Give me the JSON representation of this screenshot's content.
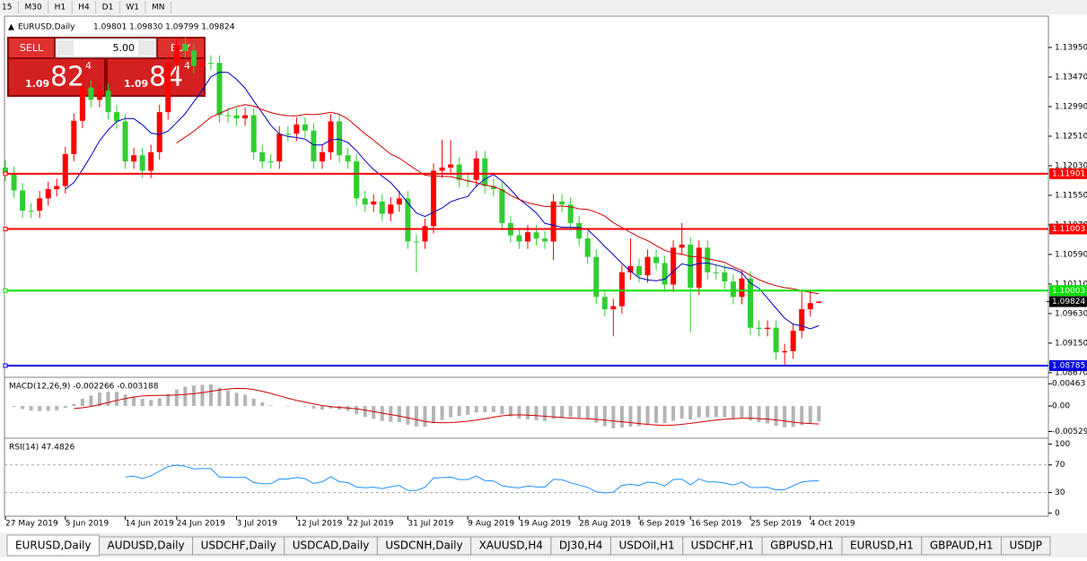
{
  "toolbar": {
    "timeframes": [
      "15",
      "M30",
      "H1",
      "H4",
      "D1",
      "W1",
      "MN"
    ]
  },
  "header": {
    "symbol": "EURUSD,Daily",
    "ohlc": "1.09801 1.09830 1.09799 1.09824"
  },
  "trade_panel": {
    "sell": "SELL",
    "buy": "BUY",
    "lot": "5.00",
    "sell_price": {
      "big": "1.09",
      "pips": "82",
      "point": "4"
    },
    "buy_price": {
      "big": "1.09",
      "pips": "84",
      "point": "4"
    }
  },
  "chart": {
    "ylim": [
      1.0861,
      1.1443
    ],
    "yticks": [
      {
        "value": 1.1395,
        "label": "1.13950"
      },
      {
        "value": 1.1347,
        "label": "1.13470"
      },
      {
        "value": 1.1299,
        "label": "1.12990"
      },
      {
        "value": 1.1251,
        "label": "1.12510"
      },
      {
        "value": 1.1203,
        "label": "1.12030"
      },
      {
        "value": 1.1155,
        "label": "1.11550"
      },
      {
        "value": 1.1107,
        "label": "1.11070"
      },
      {
        "value": 1.1059,
        "label": "1.10590"
      },
      {
        "value": 1.1011,
        "label": "1.10110"
      },
      {
        "value": 1.0963,
        "label": "1.09630"
      },
      {
        "value": 1.0915,
        "label": "1.09150"
      },
      {
        "value": 1.0867,
        "label": "1.08670"
      }
    ],
    "bull_color": "#ff0000",
    "bear_color": "#32cd32",
    "fast_ma_color": "#0000c0",
    "slow_ma_color": "#d00000",
    "levels": [
      {
        "value": 1.11901,
        "label": "1.11901",
        "color": "#ff0000"
      },
      {
        "value": 1.11003,
        "label": "1.11003",
        "color": "#ff0000"
      },
      {
        "value": 1.10003,
        "label": "1.10003",
        "color": "#00e000"
      },
      {
        "value": 1.08785,
        "label": "1.08785",
        "color": "#0000e0"
      }
    ],
    "current": {
      "value": 1.09824,
      "label": "1.09824"
    },
    "candles": [
      [
        1.12,
        1.1212,
        1.1178,
        1.119
      ],
      [
        1.119,
        1.1202,
        1.1151,
        1.1163
      ],
      [
        1.1163,
        1.1175,
        1.1118,
        1.113
      ],
      [
        1.113,
        1.1142,
        1.1118,
        1.113
      ],
      [
        1.113,
        1.1162,
        1.1118,
        1.115
      ],
      [
        1.115,
        1.1177,
        1.1138,
        1.1165
      ],
      [
        1.1165,
        1.1182,
        1.1153,
        1.117
      ],
      [
        1.117,
        1.1234,
        1.1158,
        1.1222
      ],
      [
        1.1222,
        1.1288,
        1.121,
        1.1276
      ],
      [
        1.1276,
        1.1348,
        1.1264,
        1.133
      ],
      [
        1.133,
        1.1342,
        1.1298,
        1.131
      ],
      [
        1.131,
        1.1337,
        1.1298,
        1.1325
      ],
      [
        1.1325,
        1.1337,
        1.1278,
        1.129
      ],
      [
        1.129,
        1.1302,
        1.1263,
        1.1275
      ],
      [
        1.1275,
        1.1287,
        1.1198,
        1.121
      ],
      [
        1.121,
        1.1232,
        1.1198,
        1.122
      ],
      [
        1.122,
        1.1232,
        1.1183,
        1.1195
      ],
      [
        1.1195,
        1.1237,
        1.1183,
        1.1225
      ],
      [
        1.1225,
        1.1302,
        1.1213,
        1.129
      ],
      [
        1.129,
        1.1382,
        1.1278,
        1.137
      ],
      [
        1.137,
        1.1412,
        1.1358,
        1.14
      ],
      [
        1.14,
        1.1412,
        1.1378,
        1.139
      ],
      [
        1.139,
        1.1402,
        1.1353,
        1.1365
      ],
      [
        1.1365,
        1.1382,
        1.1353,
        1.137
      ],
      [
        1.137,
        1.1382,
        1.1358,
        1.137
      ],
      [
        1.137,
        1.1382,
        1.1273,
        1.1285
      ],
      [
        1.1285,
        1.1297,
        1.1273,
        1.1285
      ],
      [
        1.1285,
        1.1297,
        1.1268,
        1.128
      ],
      [
        1.128,
        1.1297,
        1.1268,
        1.1285
      ],
      [
        1.1285,
        1.1297,
        1.1213,
        1.1225
      ],
      [
        1.1225,
        1.1237,
        1.1198,
        1.121
      ],
      [
        1.121,
        1.1222,
        1.1198,
        1.121
      ],
      [
        1.121,
        1.1267,
        1.1198,
        1.1255
      ],
      [
        1.1255,
        1.1267,
        1.1243,
        1.1255
      ],
      [
        1.1255,
        1.1282,
        1.1243,
        1.127
      ],
      [
        1.127,
        1.1282,
        1.1248,
        1.126
      ],
      [
        1.126,
        1.1272,
        1.1198,
        1.121
      ],
      [
        1.121,
        1.1237,
        1.1198,
        1.1225
      ],
      [
        1.1225,
        1.1287,
        1.1213,
        1.1275
      ],
      [
        1.1275,
        1.1287,
        1.1208,
        1.122
      ],
      [
        1.122,
        1.1232,
        1.1198,
        1.121
      ],
      [
        1.121,
        1.1222,
        1.1138,
        1.115
      ],
      [
        1.115,
        1.1162,
        1.1128,
        1.114
      ],
      [
        1.114,
        1.1157,
        1.1128,
        1.1145
      ],
      [
        1.1145,
        1.1157,
        1.1113,
        1.1125
      ],
      [
        1.1125,
        1.1152,
        1.1113,
        1.114
      ],
      [
        1.114,
        1.1162,
        1.1128,
        1.115
      ],
      [
        1.115,
        1.1162,
        1.1068,
        1.108
      ],
      [
        1.108,
        1.1092,
        1.103,
        1.108
      ],
      [
        1.108,
        1.1117,
        1.1068,
        1.1105
      ],
      [
        1.1105,
        1.1207,
        1.1093,
        1.1195
      ],
      [
        1.1195,
        1.1245,
        1.1183,
        1.12
      ],
      [
        1.12,
        1.1245,
        1.1188,
        1.1205
      ],
      [
        1.1205,
        1.1217,
        1.1168,
        1.118
      ],
      [
        1.118,
        1.1192,
        1.1168,
        1.118
      ],
      [
        1.118,
        1.1227,
        1.1168,
        1.1215
      ],
      [
        1.1215,
        1.1227,
        1.1158,
        1.117
      ],
      [
        1.117,
        1.1182,
        1.1153,
        1.1165
      ],
      [
        1.1165,
        1.1177,
        1.1098,
        1.111
      ],
      [
        1.111,
        1.1122,
        1.1078,
        1.109
      ],
      [
        1.109,
        1.1102,
        1.1068,
        1.108
      ],
      [
        1.108,
        1.1107,
        1.1068,
        1.1095
      ],
      [
        1.1095,
        1.1107,
        1.1073,
        1.1085
      ],
      [
        1.1085,
        1.1097,
        1.1068,
        1.108
      ],
      [
        1.108,
        1.1157,
        1.105,
        1.1145
      ],
      [
        1.1145,
        1.1157,
        1.1128,
        1.114
      ],
      [
        1.114,
        1.1152,
        1.1098,
        1.111
      ],
      [
        1.111,
        1.1122,
        1.1073,
        1.1085
      ],
      [
        1.1085,
        1.1097,
        1.1043,
        1.1055
      ],
      [
        1.1055,
        1.1067,
        1.0978,
        1.099
      ],
      [
        1.099,
        1.1002,
        1.0958,
        1.097
      ],
      [
        1.097,
        1.0987,
        1.0926,
        1.0975
      ],
      [
        1.0975,
        1.1042,
        1.0963,
        1.103
      ],
      [
        1.103,
        1.1085,
        1.1018,
        1.104
      ],
      [
        1.104,
        1.1052,
        1.1013,
        1.1025
      ],
      [
        1.1025,
        1.1067,
        1.1013,
        1.1055
      ],
      [
        1.1055,
        1.1067,
        1.1033,
        1.1045
      ],
      [
        1.1045,
        1.1057,
        1.0998,
        1.101
      ],
      [
        1.101,
        1.1082,
        1.0998,
        1.107
      ],
      [
        1.107,
        1.111,
        1.1058,
        1.1075
      ],
      [
        1.1075,
        1.1087,
        1.0932,
        1.1005
      ],
      [
        1.1005,
        1.1082,
        1.0993,
        1.107
      ],
      [
        1.107,
        1.1082,
        1.1018,
        1.103
      ],
      [
        1.103,
        1.1042,
        1.1018,
        1.103
      ],
      [
        1.103,
        1.1042,
        1.1003,
        1.1015
      ],
      [
        1.1015,
        1.1027,
        1.0978,
        1.099
      ],
      [
        1.099,
        1.1032,
        1.0978,
        1.102
      ],
      [
        1.102,
        1.1032,
        1.0928,
        1.094
      ],
      [
        1.094,
        1.0952,
        1.0926,
        1.0938
      ],
      [
        1.0938,
        1.0952,
        1.0926,
        1.094
      ],
      [
        1.094,
        1.0952,
        1.0888,
        1.09
      ],
      [
        1.09,
        1.0914,
        1.0879,
        1.0902
      ],
      [
        1.0902,
        1.0947,
        1.089,
        1.0935
      ],
      [
        1.0935,
        1.1,
        1.0923,
        1.097
      ],
      [
        1.097,
        1.0999,
        1.0958,
        1.098
      ],
      [
        1.09801,
        1.0983,
        1.09799,
        1.09824
      ]
    ],
    "dates": [
      {
        "candle": 0,
        "label": "27 May 2019"
      },
      {
        "candle": 7,
        "label": "5 Jun 2019"
      },
      {
        "candle": 14,
        "label": "14 Jun 2019"
      },
      {
        "candle": 20,
        "label": "24 Jun 2019"
      },
      {
        "candle": 27,
        "label": "3 Jul 2019"
      },
      {
        "candle": 34,
        "label": "12 Jul 2019"
      },
      {
        "candle": 40,
        "label": "22 Jul 2019"
      },
      {
        "candle": 47,
        "label": "31 Jul 2019"
      },
      {
        "candle": 54,
        "label": "9 Aug 2019"
      },
      {
        "candle": 60,
        "label": "19 Aug 2019"
      },
      {
        "candle": 67,
        "label": "28 Aug 2019"
      },
      {
        "candle": 74,
        "label": "6 Sep 2019"
      },
      {
        "candle": 80,
        "label": "16 Sep 2019"
      },
      {
        "candle": 87,
        "label": "25 Sep 2019"
      },
      {
        "candle": 94,
        "label": "4 Oct 2019"
      }
    ]
  },
  "macd": {
    "label": "MACD(12,26,9) -0.002266 -0.003188",
    "ylim": [
      -0.0067,
      0.0056
    ],
    "yticks": [
      {
        "value": 0.00463,
        "label": "0.00463"
      },
      {
        "value": 0,
        "label": "0.00"
      },
      {
        "value": -0.005299,
        "label": "-0.005299"
      }
    ]
  },
  "rsi": {
    "label": "RSI(14) 47.4826",
    "ylim": [
      -3,
      106
    ],
    "yticks": [
      100,
      70,
      30,
      0
    ],
    "levels": [
      70,
      30
    ]
  },
  "tabs": [
    "EURUSD,Daily",
    "AUDUSD,Daily",
    "USDCHF,Daily",
    "USDCAD,Daily",
    "USDCNH,Daily",
    "XAUUSD,H4",
    "DJ30,H4",
    "USDOil,H1",
    "USDCHF,H1",
    "GBPUSD,H1",
    "EURUSD,H1",
    "GBPAUD,H1",
    "USDJP"
  ]
}
